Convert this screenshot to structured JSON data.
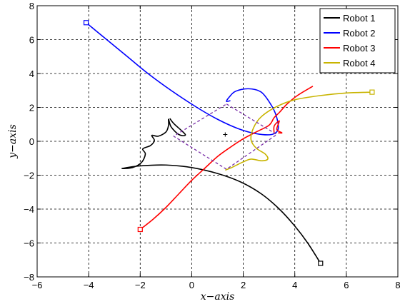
{
  "chart_data": {
    "type": "line",
    "xlabel": "x−axis",
    "ylabel": "y−axis",
    "xlim": [
      -6,
      8
    ],
    "ylim": [
      -8,
      8
    ],
    "xticks": [
      -6,
      -4,
      -2,
      0,
      2,
      4,
      6,
      8
    ],
    "yticks": [
      -8,
      -6,
      -4,
      -2,
      0,
      2,
      4,
      6,
      8
    ],
    "xtick_labels": [
      "−6",
      "−4",
      "−2",
      "0",
      "2",
      "4",
      "6",
      "8"
    ],
    "ytick_labels": [
      "−8",
      "−6",
      "−4",
      "−2",
      "0",
      "2",
      "4",
      "6",
      "8"
    ],
    "grid": true,
    "legend_position": "top-right",
    "series": [
      {
        "name": "Robot 1",
        "color": "#000000",
        "start_marker": [
          5.0,
          -7.2
        ],
        "points": [
          [
            5.0,
            -7.2
          ],
          [
            4.5,
            -6.0
          ],
          [
            4.0,
            -5.0
          ],
          [
            3.4,
            -4.0
          ],
          [
            2.7,
            -3.1
          ],
          [
            1.9,
            -2.4
          ],
          [
            1.0,
            -1.9
          ],
          [
            0.0,
            -1.55
          ],
          [
            -1.0,
            -1.4
          ],
          [
            -2.0,
            -1.45
          ],
          [
            -2.7,
            -1.6
          ],
          [
            -2.3,
            -1.55
          ],
          [
            -1.95,
            -1.25
          ],
          [
            -1.8,
            -0.75
          ],
          [
            -1.9,
            -0.45
          ],
          [
            -1.6,
            -0.25
          ],
          [
            -1.45,
            0.05
          ],
          [
            -1.55,
            0.35
          ],
          [
            -1.3,
            0.3
          ],
          [
            -1.0,
            0.55
          ],
          [
            -0.9,
            0.95
          ],
          [
            -0.9,
            1.3
          ],
          [
            -0.8,
            0.85
          ],
          [
            -0.5,
            0.4
          ],
          [
            -0.25,
            0.4
          ],
          [
            -0.7,
            1.05
          ],
          [
            -0.85,
            1.35
          ]
        ]
      },
      {
        "name": "Robot 2",
        "color": "#0000ff",
        "start_marker": [
          -4.1,
          7.0
        ],
        "points": [
          [
            -4.1,
            7.0
          ],
          [
            -3.3,
            6.0
          ],
          [
            -2.5,
            5.0
          ],
          [
            -1.7,
            4.0
          ],
          [
            -0.8,
            3.0
          ],
          [
            0.2,
            2.0
          ],
          [
            1.0,
            1.3
          ],
          [
            1.8,
            0.75
          ],
          [
            2.5,
            0.45
          ],
          [
            3.1,
            0.4
          ],
          [
            3.35,
            0.7
          ],
          [
            3.3,
            1.4
          ],
          [
            3.1,
            2.1
          ],
          [
            2.7,
            2.9
          ],
          [
            2.2,
            3.1
          ],
          [
            1.7,
            2.95
          ],
          [
            1.45,
            2.6
          ],
          [
            1.35,
            2.35
          ],
          [
            1.5,
            2.4
          ]
        ]
      },
      {
        "name": "Robot 3",
        "color": "#ff0000",
        "start_marker": [
          -2.0,
          -5.2
        ],
        "points": [
          [
            -2.0,
            -5.2
          ],
          [
            -1.5,
            -4.6
          ],
          [
            -1.0,
            -3.9
          ],
          [
            -0.5,
            -3.1
          ],
          [
            0.0,
            -2.3
          ],
          [
            0.5,
            -1.6
          ],
          [
            1.0,
            -0.9
          ],
          [
            1.5,
            -0.35
          ],
          [
            2.0,
            0.15
          ],
          [
            2.5,
            0.55
          ],
          [
            3.0,
            0.95
          ],
          [
            3.2,
            1.4
          ],
          [
            3.4,
            1.7
          ],
          [
            3.7,
            2.2
          ],
          [
            4.1,
            2.7
          ],
          [
            4.7,
            3.25
          ]
        ],
        "extra_points": [
          [
            3.2,
            0.45
          ],
          [
            3.2,
            0.9
          ],
          [
            3.4,
            1.2
          ],
          [
            3.3,
            0.7
          ],
          [
            3.5,
            0.5
          ],
          [
            3.35,
            0.5
          ]
        ]
      },
      {
        "name": "Robot 4",
        "color": "#c8b400",
        "start_marker": [
          7.0,
          2.9
        ],
        "points": [
          [
            7.0,
            2.9
          ],
          [
            6.0,
            2.85
          ],
          [
            5.0,
            2.7
          ],
          [
            4.0,
            2.45
          ],
          [
            3.3,
            2.05
          ],
          [
            2.7,
            1.45
          ],
          [
            2.4,
            0.8
          ],
          [
            2.3,
            0.1
          ],
          [
            2.5,
            -0.4
          ],
          [
            2.85,
            -0.75
          ],
          [
            2.95,
            -1.05
          ],
          [
            2.7,
            -1.15
          ],
          [
            2.3,
            -1.05
          ],
          [
            1.95,
            -1.25
          ],
          [
            1.55,
            -1.55
          ],
          [
            1.3,
            -1.7
          ]
        ]
      },
      {
        "name": "",
        "color": "#7a2fa8",
        "closed": true,
        "dashed": true,
        "points": [
          [
            1.35,
            2.2
          ],
          [
            3.3,
            0.4
          ],
          [
            1.35,
            -1.65
          ],
          [
            -0.7,
            0.3
          ]
        ]
      }
    ],
    "center_marker": [
      1.3,
      0.4
    ]
  }
}
